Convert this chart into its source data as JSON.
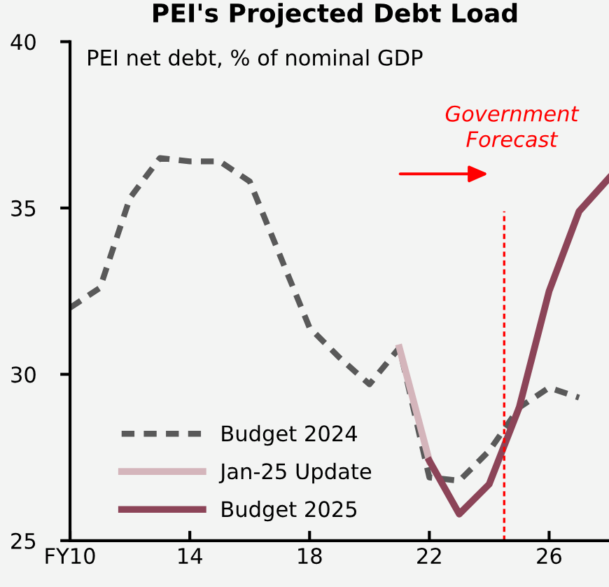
{
  "chart_data": {
    "type": "line",
    "title": "PEI's Projected Debt Load",
    "subtitle": "PEI net debt, % of nominal GDP",
    "xlim": [
      10,
      28
    ],
    "xticks": [
      {
        "value": 10,
        "label": "FY10"
      },
      14,
      18,
      22,
      26
    ],
    "ylim": [
      25,
      40
    ],
    "yticks": [
      25,
      30,
      35,
      40
    ],
    "grid": false,
    "legend": "bottom left",
    "marker": "none",
    "ref_lines": [
      {
        "axis": "x",
        "value": 24.5,
        "label": "Government\nForecast",
        "color": "#ff0000",
        "line_style": "dashed"
      }
    ],
    "series": [
      {
        "name": "Budget 2024",
        "color": "#595959",
        "line_style": "dashed",
        "x": [
          10,
          11,
          12,
          13,
          14,
          15,
          16,
          17,
          18,
          19,
          20,
          21,
          22,
          23,
          24,
          25,
          26,
          27
        ],
        "values": [
          32.0,
          32.6,
          35.3,
          36.5,
          36.4,
          36.4,
          35.8,
          33.6,
          31.4,
          30.5,
          29.7,
          30.8,
          26.9,
          26.8,
          27.7,
          29.0,
          29.6,
          29.3
        ]
      },
      {
        "name": "Jan-25 Update",
        "color": "#d4b5bb",
        "line_style": "solid",
        "x": [
          21,
          22
        ],
        "values": [
          30.8,
          27.4
        ]
      },
      {
        "name": "Budget 2025",
        "color": "#8c4458",
        "line_style": "solid",
        "x": [
          22,
          23,
          24,
          25,
          26,
          27,
          28
        ],
        "values": [
          27.4,
          25.8,
          26.7,
          29.0,
          32.5,
          34.9,
          35.9
        ]
      }
    ]
  }
}
